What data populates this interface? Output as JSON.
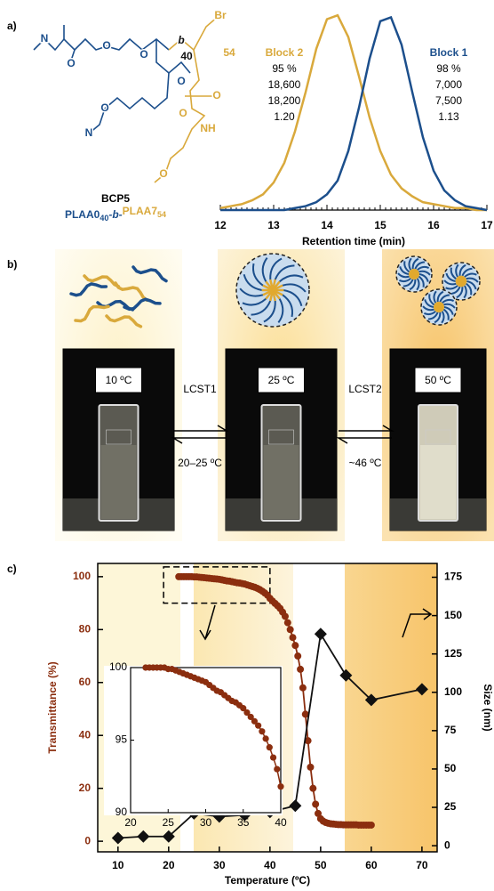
{
  "panel_labels": [
    "a)",
    "b)",
    "c)"
  ],
  "structure": {
    "name": "BCP5",
    "block1": "PLAA0",
    "block1_n": "40",
    "linker": "-b-",
    "block2": "PLAA7",
    "block2_n": "54",
    "atoms": [
      "N",
      "O",
      "O",
      "O",
      "O",
      "N",
      "O",
      "b",
      "40",
      "54",
      "Br",
      "O",
      "O",
      "NH",
      "O"
    ]
  },
  "panel_b": {
    "temperatures": [
      "10 ºC",
      "25 ºC",
      "50 ºC"
    ],
    "transitions": [
      {
        "label": "LCST1",
        "range": "20–25 ºC"
      },
      {
        "label": "LCST2",
        "range": "~46 ºC"
      }
    ]
  },
  "chart_data": [
    {
      "type": "line",
      "xlabel": "Retention time (min)",
      "xlim": [
        12,
        17
      ],
      "xticks": [
        12,
        13,
        14,
        15,
        16,
        17
      ],
      "x": [
        12,
        12.2,
        12.4,
        12.6,
        12.8,
        13,
        13.2,
        13.4,
        13.6,
        13.8,
        14,
        14.2,
        14.4,
        14.6,
        14.8,
        15,
        15.2,
        15.4,
        15.6,
        15.8,
        16,
        16.2,
        16.4,
        16.6,
        16.8,
        17
      ],
      "series": [
        {
          "name": "Block 2",
          "color": "#d9a93c",
          "values": [
            0.01,
            0.02,
            0.03,
            0.05,
            0.08,
            0.14,
            0.24,
            0.4,
            0.6,
            0.82,
            0.97,
            0.99,
            0.88,
            0.68,
            0.47,
            0.3,
            0.18,
            0.11,
            0.07,
            0.04,
            0.03,
            0.02,
            0.01,
            0.01,
            0,
            0
          ],
          "annotations": [
            "95 %",
            "18,600",
            "18,200",
            "1.20"
          ]
        },
        {
          "name": "Block 1",
          "color": "#1c4f8c",
          "values": [
            0,
            0,
            0,
            0,
            0,
            0,
            0,
            0.01,
            0.02,
            0.04,
            0.08,
            0.15,
            0.3,
            0.52,
            0.77,
            0.96,
            0.98,
            0.84,
            0.6,
            0.37,
            0.2,
            0.1,
            0.05,
            0.02,
            0.01,
            0
          ],
          "annotations": [
            "98 %",
            "7,000",
            "7,500",
            "1.13"
          ]
        }
      ]
    },
    {
      "type": "line",
      "xlabel": "Temperature (ºC)",
      "ylabel": "Transmittance (%)",
      "y2label": "Size (nm)",
      "xlim": [
        6,
        73
      ],
      "xticks": [
        10,
        20,
        30,
        40,
        50,
        60,
        70
      ],
      "ylim": [
        -4,
        105
      ],
      "yticks": [
        0,
        20,
        40,
        60,
        80,
        100
      ],
      "y2lim": [
        -4,
        184
      ],
      "y2ticks": [
        0,
        25,
        50,
        75,
        100,
        125,
        150,
        175
      ],
      "series": [
        {
          "color": "#8b2e0f",
          "marker": "circle",
          "x": [
            22,
            22.5,
            23,
            23.5,
            24,
            24.5,
            25,
            25.5,
            26,
            26.5,
            27,
            27.5,
            28,
            28.5,
            29,
            29.5,
            30,
            30.5,
            31,
            31.5,
            32,
            32.5,
            33,
            33.5,
            34,
            34.5,
            35,
            35.5,
            36,
            36.5,
            37,
            37.5,
            38,
            38.5,
            39,
            39.5,
            40,
            40.5,
            41,
            41.5,
            42,
            42.5,
            43,
            43.5,
            44,
            44.5,
            45,
            45.5,
            46,
            46.5,
            47,
            47.5,
            48,
            48.5,
            49,
            49.5,
            50,
            50.5,
            51,
            51.5,
            52,
            52.5,
            53,
            53.5,
            54,
            54.5,
            55,
            55.5,
            56,
            56.5,
            57,
            57.5,
            58,
            58.5,
            59,
            59.5,
            60
          ],
          "values": [
            100,
            100,
            100,
            100,
            100,
            100,
            99.9,
            99.9,
            99.8,
            99.7,
            99.6,
            99.5,
            99.4,
            99.3,
            99.2,
            99.1,
            99,
            98.8,
            98.6,
            98.4,
            98.3,
            98.1,
            97.9,
            97.7,
            97.6,
            97.4,
            97.2,
            96.9,
            96.6,
            96.3,
            96,
            95.6,
            95.1,
            94.5,
            93.8,
            93,
            91.8,
            90.8,
            89.9,
            89,
            88,
            86.6,
            85,
            82.6,
            80,
            77,
            74,
            70,
            65,
            58,
            48,
            38,
            28,
            20,
            14,
            10.5,
            8.5,
            7.6,
            7.1,
            6.8,
            6.6,
            6.5,
            6.4,
            6.3,
            6.3,
            6.2,
            6.2,
            6.2,
            6.2,
            6.2,
            6.2,
            6.1,
            6.1,
            6.1,
            6.1,
            6.1,
            6.1
          ]
        },
        {
          "color": "#111111",
          "marker": "diamond",
          "axis": "y2",
          "x": [
            10,
            15,
            20,
            25,
            30,
            35,
            40,
            45,
            50,
            55,
            60,
            70
          ],
          "values": [
            5,
            6,
            6,
            21,
            19,
            20,
            22,
            26,
            138,
            111,
            95,
            102
          ]
        }
      ]
    },
    {
      "type": "line",
      "xlim": [
        20,
        40
      ],
      "xticks": [
        20,
        25,
        30,
        35,
        40
      ],
      "ylim": [
        90,
        100
      ],
      "yticks": [
        90,
        95,
        100
      ],
      "series": [
        {
          "color": "#8b2e0f",
          "marker": "circle",
          "x": [
            22,
            22.5,
            23,
            23.5,
            24,
            24.5,
            25,
            25.5,
            26,
            26.5,
            27,
            27.5,
            28,
            28.5,
            29,
            29.5,
            30,
            30.5,
            31,
            31.5,
            32,
            32.5,
            33,
            33.5,
            34,
            34.5,
            35,
            35.5,
            36,
            36.5,
            37,
            37.5,
            38,
            38.5,
            39,
            39.5,
            40
          ],
          "values": [
            100,
            100,
            100,
            100,
            100,
            100,
            99.9,
            99.9,
            99.8,
            99.7,
            99.6,
            99.5,
            99.4,
            99.3,
            99.2,
            99.1,
            99,
            98.8,
            98.6,
            98.4,
            98.3,
            98.1,
            97.9,
            97.7,
            97.6,
            97.4,
            97.2,
            96.9,
            96.6,
            96.3,
            96,
            95.6,
            95.1,
            94.5,
            93.8,
            93,
            91.8
          ]
        }
      ]
    }
  ]
}
